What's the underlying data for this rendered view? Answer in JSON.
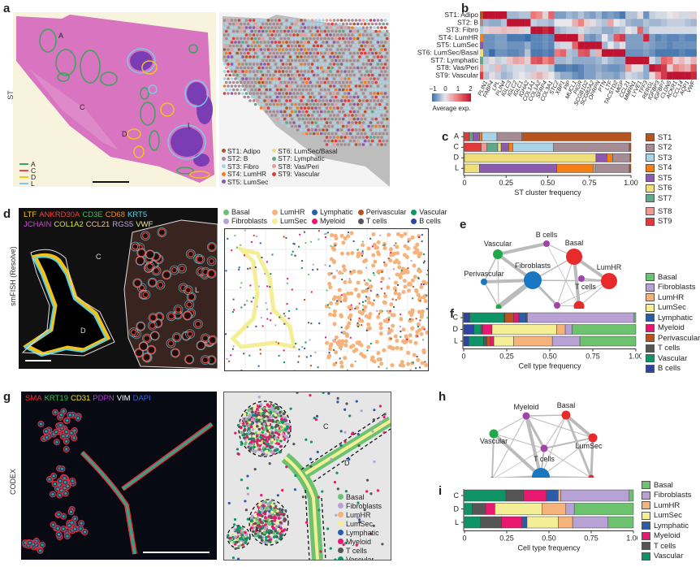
{
  "panel_letters": {
    "a": "a",
    "b": "b",
    "c": "c",
    "d": "d",
    "e": "e",
    "f": "f",
    "g": "g",
    "h": "h",
    "i": "i"
  },
  "row_labels": {
    "st": "ST",
    "smfish": "smFISH (Resolve)",
    "codex": "CODEX"
  },
  "panel_a": {
    "region_labels": {
      "A": "A",
      "C": "C",
      "D": "D",
      "L": "L"
    },
    "region_legend": [
      {
        "label": "A",
        "color": "#3aa55a"
      },
      {
        "label": "C",
        "color": "#e84a4a"
      },
      {
        "label": "D",
        "color": "#f0c419"
      },
      {
        "label": "L",
        "color": "#7fc8e8"
      }
    ],
    "cluster_legend": [
      {
        "label": "ST1: Adipo",
        "color": "#b5541f"
      },
      {
        "label": "ST2: B",
        "color": "#a58b93"
      },
      {
        "label": "ST3: Fibro",
        "color": "#a9d4e8"
      },
      {
        "label": "ST4: LumHR",
        "color": "#f57f17"
      },
      {
        "label": "ST5: LumSec",
        "color": "#8a5aad"
      },
      {
        "label": "ST6: LumSec/Basal",
        "color": "#f0de7a"
      },
      {
        "label": "ST7: Lymphatic",
        "color": "#5fa88a"
      },
      {
        "label": "ST8: Vas/Peri",
        "color": "#ee9a94"
      },
      {
        "label": "ST9: Vascular",
        "color": "#e2393a"
      }
    ]
  },
  "panel_b": {
    "colorbar": {
      "ticks": [
        "−1",
        "0",
        "1",
        "2"
      ],
      "label": "Average exp."
    }
  },
  "panel_d": {
    "marker_line1": [
      {
        "label": "LTF",
        "color": "#f2c21b"
      },
      {
        "label": "ANKRD30A",
        "color": "#e8403a"
      },
      {
        "label": "CD3E",
        "color": "#3fbf4f"
      },
      {
        "label": "CD68",
        "color": "#f2891b"
      },
      {
        "label": "KRT5",
        "color": "#5ad1e6"
      }
    ],
    "marker_line2": [
      {
        "label": "JCHAIN",
        "color": "#c34bc9"
      },
      {
        "label": "COL1A2",
        "color": "#d8e043"
      },
      {
        "label": "CCL21",
        "color": "#e9c6a0"
      },
      {
        "label": "RGS5",
        "color": "#c4a6d8"
      },
      {
        "label": "VWF",
        "color": "#f0e6a0"
      }
    ],
    "region_labels": {
      "C": "C",
      "D": "D",
      "L": "L"
    },
    "celltype_legend": [
      {
        "label": "Basal",
        "color": "#6cc26f"
      },
      {
        "label": "LumHR",
        "color": "#f5b27b"
      },
      {
        "label": "Lymphatic",
        "color": "#2b5ca8"
      },
      {
        "label": "Perivascular",
        "color": "#b9521f"
      },
      {
        "label": "Vascular",
        "color": "#0e9467"
      },
      {
        "label": "Fibroblasts",
        "color": "#b8a1d4"
      },
      {
        "label": "LumSec",
        "color": "#f4ee96"
      },
      {
        "label": "Myeloid",
        "color": "#e8176f"
      },
      {
        "label": "T cells",
        "color": "#555555"
      },
      {
        "label": "B cells",
        "color": "#2d45a0"
      }
    ]
  },
  "panel_g": {
    "marker_line": [
      {
        "label": "SMA",
        "color": "#e8303a"
      },
      {
        "label": "KRT19",
        "color": "#3fbf4f"
      },
      {
        "label": "CD31",
        "color": "#f2e21b"
      },
      {
        "label": "PDPN",
        "color": "#b03bc9"
      },
      {
        "label": "VIM",
        "color": "#ffffff"
      },
      {
        "label": "DAPI",
        "color": "#3a62d8"
      }
    ],
    "region_labels": {
      "C": "C",
      "D": "D",
      "L1": "L",
      "L2": "L"
    },
    "celltype_legend": [
      {
        "label": "Basal",
        "color": "#6cc26f"
      },
      {
        "label": "Fibroblasts",
        "color": "#b8a1d4"
      },
      {
        "label": "LumHR",
        "color": "#f5b27b"
      },
      {
        "label": "LumSec",
        "color": "#f4ee96"
      },
      {
        "label": "Lymphatic",
        "color": "#2b5ca8"
      },
      {
        "label": "Myeloid",
        "color": "#e8176f"
      },
      {
        "label": "T cells",
        "color": "#555555"
      },
      {
        "label": "Vascular",
        "color": "#0e9467"
      }
    ]
  },
  "panel_e_nodes": [
    {
      "label": "B cells",
      "color": "#a044a8"
    },
    {
      "label": "Vascular",
      "color": "#1fa84a"
    },
    {
      "label": "Basal",
      "color": "#e82a2a"
    },
    {
      "label": "Fibroblasts",
      "color": "#1877c0"
    },
    {
      "label": "Perivascular",
      "color": "#1877c0"
    },
    {
      "label": "LumHR",
      "color": "#e82a2a"
    },
    {
      "label": "T cells",
      "color": "#a044a8"
    },
    {
      "label": "Lymphatic",
      "color": "#1fa84a"
    },
    {
      "label": "Myeloid",
      "color": "#a044a8"
    },
    {
      "label": "LumSec",
      "color": "#e82a2a"
    }
  ],
  "panel_h_nodes": [
    {
      "label": "Myeloid",
      "color": "#a044a8"
    },
    {
      "label": "Basal",
      "color": "#e82a2a"
    },
    {
      "label": "Vascular",
      "color": "#1fa84a"
    },
    {
      "label": "LumSec",
      "color": "#e82a2a"
    },
    {
      "label": "T cells",
      "color": "#a044a8"
    },
    {
      "label": "Lymphatic",
      "color": "#1fa84a"
    },
    {
      "label": "Fibroblasts",
      "color": "#1877c0"
    },
    {
      "label": "LumHR",
      "color": "#e82a2a"
    }
  ],
  "chart_data": [
    {
      "id": "b",
      "type": "heatmap",
      "rows": [
        "ST1: Adipo",
        "ST2: B",
        "ST3: Fibro",
        "ST4: LumHR",
        "ST5: LumSec",
        "ST6: LumSec/Basal",
        "ST7: Lymphatic",
        "ST8: Vas/Peri",
        "ST9: Vascular"
      ],
      "row_colors": [
        "#b5541f",
        "#a58b93",
        "#a9d4e8",
        "#f57f17",
        "#8a5aad",
        "#f0de7a",
        "#5fa88a",
        "#ee9a94",
        "#e2393a"
      ],
      "columns": [
        "PLIN1",
        "FABP4",
        "LPL",
        "PLIN4",
        "IGLC3",
        "IGLC2",
        "IGLC1",
        "IGHA2",
        "COL1A1",
        "COL1A2",
        "SFRP4",
        "COL3A1",
        "STC2",
        "XBP1",
        "PIP",
        "MUCL1",
        "PIGR",
        "SCGB1D2",
        "SCGB2A2",
        "OPRPN",
        "PTN",
        "LTF",
        "TACSTD2",
        "MGP",
        "CCL21",
        "MMRN1",
        "LYVE1",
        "TFF3",
        "RERGL",
        "IGFBP3",
        "IGFBP7",
        "CLDN5",
        "ACKR1",
        "CCL14",
        "AQP1",
        "VWF"
      ],
      "values": [
        [
          2,
          2,
          2,
          2,
          -0.4,
          -0.4,
          -0.3,
          -0.3,
          1,
          0.8,
          0.2,
          1.2,
          -0.6,
          -0.6,
          -0.4,
          -0.5,
          -0.3,
          -0.5,
          -0.6,
          -0.4,
          -0.7,
          -0.6,
          -0.7,
          -0.9,
          -0.3,
          -0.3,
          0.1,
          -0.7,
          -0.2,
          -0.1,
          -0.1,
          0,
          0.1,
          -0.1,
          -0.1,
          0.2
        ],
        [
          -0.4,
          -0.5,
          -0.5,
          -0.3,
          2,
          2,
          2,
          2,
          -0.2,
          -0.3,
          -0.3,
          -0.4,
          0,
          0,
          0,
          0.5,
          0.9,
          0.2,
          0.1,
          -0.2,
          -0.3,
          0.6,
          0,
          -0.1,
          -0.4,
          -0.5,
          -0.5,
          -0.3,
          -0.4,
          -0.4,
          -0.3,
          -0.2,
          -0.2,
          -0.2,
          -0.3,
          -0.4
        ],
        [
          0.2,
          0.3,
          0.3,
          0.4,
          0.3,
          0.3,
          0.2,
          -0.1,
          2,
          2,
          1.8,
          2,
          -0.4,
          -0.3,
          -0.2,
          -0.2,
          -0.1,
          -0.2,
          -0.3,
          -0.3,
          -0.5,
          -0.5,
          -0.4,
          -0.3,
          0,
          -0.1,
          1.2,
          -0.4,
          -0.1,
          -0.1,
          -0.1,
          -0.1,
          -0.1,
          -0.1,
          -0.1,
          -0.1
        ],
        [
          -0.7,
          -0.7,
          -0.6,
          -0.6,
          -0.9,
          -0.9,
          -0.9,
          -1,
          -0.8,
          -0.8,
          -0.7,
          -0.8,
          2,
          2,
          2,
          2,
          0.5,
          -0.6,
          -0.7,
          -0.5,
          0,
          -0.4,
          1.3,
          1.6,
          -0.6,
          -0.6,
          -0.6,
          1.8,
          -0.6,
          -0.8,
          -0.7,
          -0.8,
          -0.8,
          -0.7,
          -0.8,
          -0.8
        ],
        [
          -0.7,
          -0.7,
          -0.6,
          -0.6,
          -0.7,
          -0.7,
          -0.7,
          -0.5,
          -0.8,
          -0.8,
          -0.7,
          -0.8,
          -0.2,
          -0.1,
          -0.1,
          1.2,
          2,
          2,
          2,
          2,
          -0.4,
          0,
          -0.3,
          0.1,
          -0.6,
          -0.6,
          -0.6,
          -0.5,
          -0.6,
          -0.7,
          -0.7,
          -0.8,
          -0.7,
          -0.7,
          -0.7,
          -0.7
        ],
        [
          -0.7,
          -1,
          -0.7,
          -0.7,
          -0.8,
          -0.8,
          -0.7,
          -0.3,
          -0.9,
          -0.9,
          -0.8,
          -0.9,
          1,
          1.2,
          -0.3,
          -0.4,
          1.3,
          1.4,
          -0.3,
          0.5,
          2,
          2,
          2,
          2,
          -0.7,
          -0.7,
          -0.7,
          -0.6,
          -0.7,
          -0.9,
          -0.9,
          -0.9,
          -0.9,
          -0.8,
          -0.9,
          -0.9
        ],
        [
          -0.2,
          0.1,
          -0.2,
          -0.1,
          0.3,
          0.6,
          0.5,
          0.2,
          1.3,
          1.4,
          0.9,
          1.2,
          -0.4,
          -0.4,
          -0.3,
          -0.5,
          -0.5,
          -0.5,
          -0.5,
          -0.4,
          -0.2,
          -0.4,
          -0.5,
          -0.5,
          2,
          2,
          2,
          2,
          -0.1,
          -0.4,
          1.2,
          1,
          0.2,
          0.4,
          0.1,
          0.5
        ],
        [
          -0.1,
          -0.2,
          0.4,
          -0.3,
          -0.2,
          -0.1,
          -0.1,
          -0.2,
          -0.2,
          -0.1,
          -0.1,
          -0.3,
          -0.9,
          -0.9,
          -0.8,
          -0.9,
          -0.8,
          -0.6,
          -0.6,
          -0.5,
          -0.6,
          -0.7,
          -0.7,
          -0.6,
          0.7,
          0.1,
          0.1,
          -0.5,
          2,
          1.8,
          1.6,
          0.2,
          0.9,
          0.7,
          0.5,
          1.3
        ],
        [
          -0.3,
          0.1,
          -0.2,
          -0.4,
          -0.3,
          -0.1,
          0,
          -0.1,
          0.3,
          0.5,
          0.2,
          0,
          -0.3,
          -0.5,
          -0.5,
          -0.7,
          -0.8,
          -0.6,
          -0.6,
          -0.4,
          -0.5,
          -0.5,
          -0.6,
          -0.4,
          -0.1,
          -0.2,
          -0.3,
          -0.5,
          0.1,
          0.8,
          1.6,
          2,
          2,
          2,
          2,
          1.8
        ]
      ],
      "colorbar": {
        "min": -1,
        "max": 2,
        "label": "Average exp."
      }
    },
    {
      "id": "c",
      "type": "bar",
      "orientation": "horizontal-stacked",
      "xlabel": "ST cluster frequency",
      "xlim": [
        0,
        1
      ],
      "xticks": [
        "0",
        "0.25",
        "0.50",
        "0.75",
        "1.00"
      ],
      "categories": [
        "A",
        "C",
        "D",
        "L"
      ],
      "series": [
        {
          "name": "ST9",
          "color": "#e2393a",
          "values": [
            0.03,
            0.1,
            0,
            0
          ]
        },
        {
          "name": "ST8",
          "color": "#ee9a94",
          "values": [
            0,
            0.035,
            0,
            0
          ]
        },
        {
          "name": "ST7",
          "color": "#5fa88a",
          "values": [
            0.02,
            0.065,
            0,
            0
          ]
        },
        {
          "name": "ST6",
          "color": "#f0de7a",
          "values": [
            0,
            0.02,
            0.79,
            0.09
          ]
        },
        {
          "name": "ST5",
          "color": "#8a5aad",
          "values": [
            0.04,
            0.045,
            0.065,
            0.465
          ]
        },
        {
          "name": "ST4",
          "color": "#f57f17",
          "values": [
            0.015,
            0.025,
            0.035,
            0.22
          ]
        },
        {
          "name": "ST3",
          "color": "#a9d4e8",
          "values": [
            0.09,
            0.245,
            0,
            0.01
          ]
        },
        {
          "name": "ST2",
          "color": "#a58b93",
          "values": [
            0.15,
            0.455,
            0.105,
            0.205
          ]
        },
        {
          "name": "ST1",
          "color": "#b5541f",
          "values": [
            0.655,
            0.01,
            0.005,
            0.01
          ]
        }
      ],
      "legend": [
        "ST1",
        "ST2",
        "ST3",
        "ST4",
        "ST5",
        "ST6",
        "ST7",
        "ST8",
        "ST9"
      ]
    },
    {
      "id": "f",
      "type": "bar",
      "orientation": "horizontal-stacked",
      "xlabel": "Cell type frequency",
      "xlim": [
        0,
        1
      ],
      "xticks": [
        "0",
        "0.25",
        "0.50",
        "0.75",
        "1.00"
      ],
      "categories": [
        "C",
        "D",
        "L"
      ],
      "series": [
        {
          "name": "B cells",
          "color": "#2d45a0",
          "values": [
            0.035,
            0.06,
            0.03
          ]
        },
        {
          "name": "Vascular",
          "color": "#0e9467",
          "values": [
            0.2,
            0.04,
            0.085
          ]
        },
        {
          "name": "T cells",
          "color": "#555555",
          "values": [
            0.005,
            0.01,
            0.02
          ]
        },
        {
          "name": "Perivascular",
          "color": "#b9521f",
          "values": [
            0.05,
            0,
            0.02
          ]
        },
        {
          "name": "Myeloid",
          "color": "#e8176f",
          "values": [
            0.03,
            0.055,
            0.02
          ]
        },
        {
          "name": "Lymphatic",
          "color": "#2b5ca8",
          "values": [
            0.04,
            0,
            0
          ]
        },
        {
          "name": "T cells ",
          "color": "#555555",
          "values": [
            0.01,
            0,
            0
          ]
        },
        {
          "name": "LumSec",
          "color": "#f4ee96",
          "values": [
            0,
            0.375,
            0.115
          ]
        },
        {
          "name": "LumHR",
          "color": "#f5b27b",
          "values": [
            0,
            0.05,
            0.225
          ]
        },
        {
          "name": "Fibroblasts",
          "color": "#b8a1d4",
          "values": [
            0.62,
            0.04,
            0.16
          ]
        },
        {
          "name": "Basal",
          "color": "#6cc26f",
          "values": [
            0.01,
            0.37,
            0.325
          ]
        }
      ],
      "legend": [
        "Basal",
        "Fibroblasts",
        "LumHR",
        "LumSec",
        "Lymphatic",
        "Myeloid",
        "Perivascular",
        "T cells",
        "Vascular",
        "B cells"
      ]
    },
    {
      "id": "i",
      "type": "bar",
      "orientation": "horizontal-stacked",
      "xlabel": "Cell type frequency",
      "xlim": [
        0,
        1
      ],
      "xticks": [
        "0",
        "0.25",
        "0.50",
        "0.75",
        "1.00"
      ],
      "categories": [
        "C",
        "D",
        "L"
      ],
      "series": [
        {
          "name": "Vascular",
          "color": "#0e9467",
          "values": [
            0.245,
            0.045,
            0.095
          ]
        },
        {
          "name": "T cells",
          "color": "#555555",
          "values": [
            0.105,
            0.08,
            0.125
          ]
        },
        {
          "name": "Myeloid",
          "color": "#e8176f",
          "values": [
            0.135,
            0.055,
            0.12
          ]
        },
        {
          "name": "Lymphatic",
          "color": "#2b5ca8",
          "values": [
            0.07,
            0,
            0.03
          ]
        },
        {
          "name": "LumSec",
          "color": "#f4ee96",
          "values": [
            0,
            0.28,
            0.185
          ]
        },
        {
          "name": "LumHR",
          "color": "#f5b27b",
          "values": [
            0.015,
            0.14,
            0.085
          ]
        },
        {
          "name": "Fibroblasts",
          "color": "#b8a1d4",
          "values": [
            0.405,
            0.05,
            0.21
          ]
        },
        {
          "name": "Basal",
          "color": "#6cc26f",
          "values": [
            0.025,
            0.35,
            0.15
          ]
        }
      ],
      "legend": [
        "Basal",
        "Fibroblasts",
        "LumHR",
        "LumSec",
        "Lymphatic",
        "Myeloid",
        "T cells",
        "Vascular"
      ]
    }
  ]
}
